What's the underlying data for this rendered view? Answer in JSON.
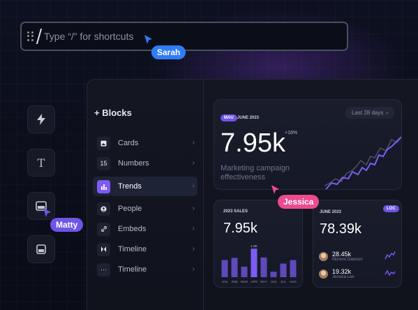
{
  "command_bar": {
    "placeholder": "Type “/” for shortcuts"
  },
  "cursors": [
    {
      "name": "Sarah",
      "color": "#2f7df6"
    },
    {
      "name": "Jessica",
      "color": "#ec4b8f"
    },
    {
      "name": "Matty",
      "color": "#6f55e6"
    }
  ],
  "tools": [
    {
      "icon": "lightning-icon"
    },
    {
      "icon": "text-icon",
      "glyph": "T"
    },
    {
      "icon": "image-block-icon"
    },
    {
      "icon": "embed-block-icon"
    }
  ],
  "blocks": {
    "title": "Blocks",
    "items": [
      {
        "label": "Cards",
        "icon": "image-icon",
        "glyph": "▣"
      },
      {
        "label": "Numbers",
        "icon": "numbers-icon",
        "glyph": "15"
      },
      {
        "label": "Trends",
        "icon": "bar-chart-icon",
        "glyph": "▮▮",
        "active": true
      },
      {
        "label": "People",
        "icon": "person-icon",
        "glyph": "●"
      },
      {
        "label": "Embeds",
        "icon": "link-icon",
        "glyph": "∞"
      },
      {
        "label": "Timeline",
        "icon": "timeline-icon",
        "glyph": "▐▌"
      },
      {
        "label": "Timeline",
        "icon": "more-icon",
        "glyph": "···"
      }
    ]
  },
  "campaign_card": {
    "pill": "MAU",
    "date": "JUNE 2023",
    "range": "Last 28 days",
    "value": "7.95k",
    "delta": "+16%",
    "caption_1": "Marketing campaign",
    "caption_2": "effectiveness",
    "colors": {
      "primary_line": "#7c5cf5",
      "secondary_line": "#4a4e5e"
    }
  },
  "sales_card": {
    "label": "2023 SALES",
    "value": "7.95k",
    "peak_label": "1.3K",
    "bar_color": "#7c5cf5",
    "chart_data": {
      "type": "bar",
      "categories": [
        "JAN",
        "FEB",
        "MAR",
        "APR",
        "MAY",
        "JUN",
        "JUL",
        "AUG"
      ],
      "values": [
        0.78,
        0.88,
        0.48,
        1.3,
        0.9,
        0.25,
        0.62,
        0.78
      ],
      "ylim": [
        0,
        1.4
      ]
    }
  },
  "june_card": {
    "label": "JUNE 2023",
    "pill": "LOC",
    "value": "78.39k",
    "people": [
      {
        "value": "28.45k",
        "name": "Moreno Dawson"
      },
      {
        "value": "19.32k",
        "name": "Jessica Lee"
      }
    ]
  }
}
